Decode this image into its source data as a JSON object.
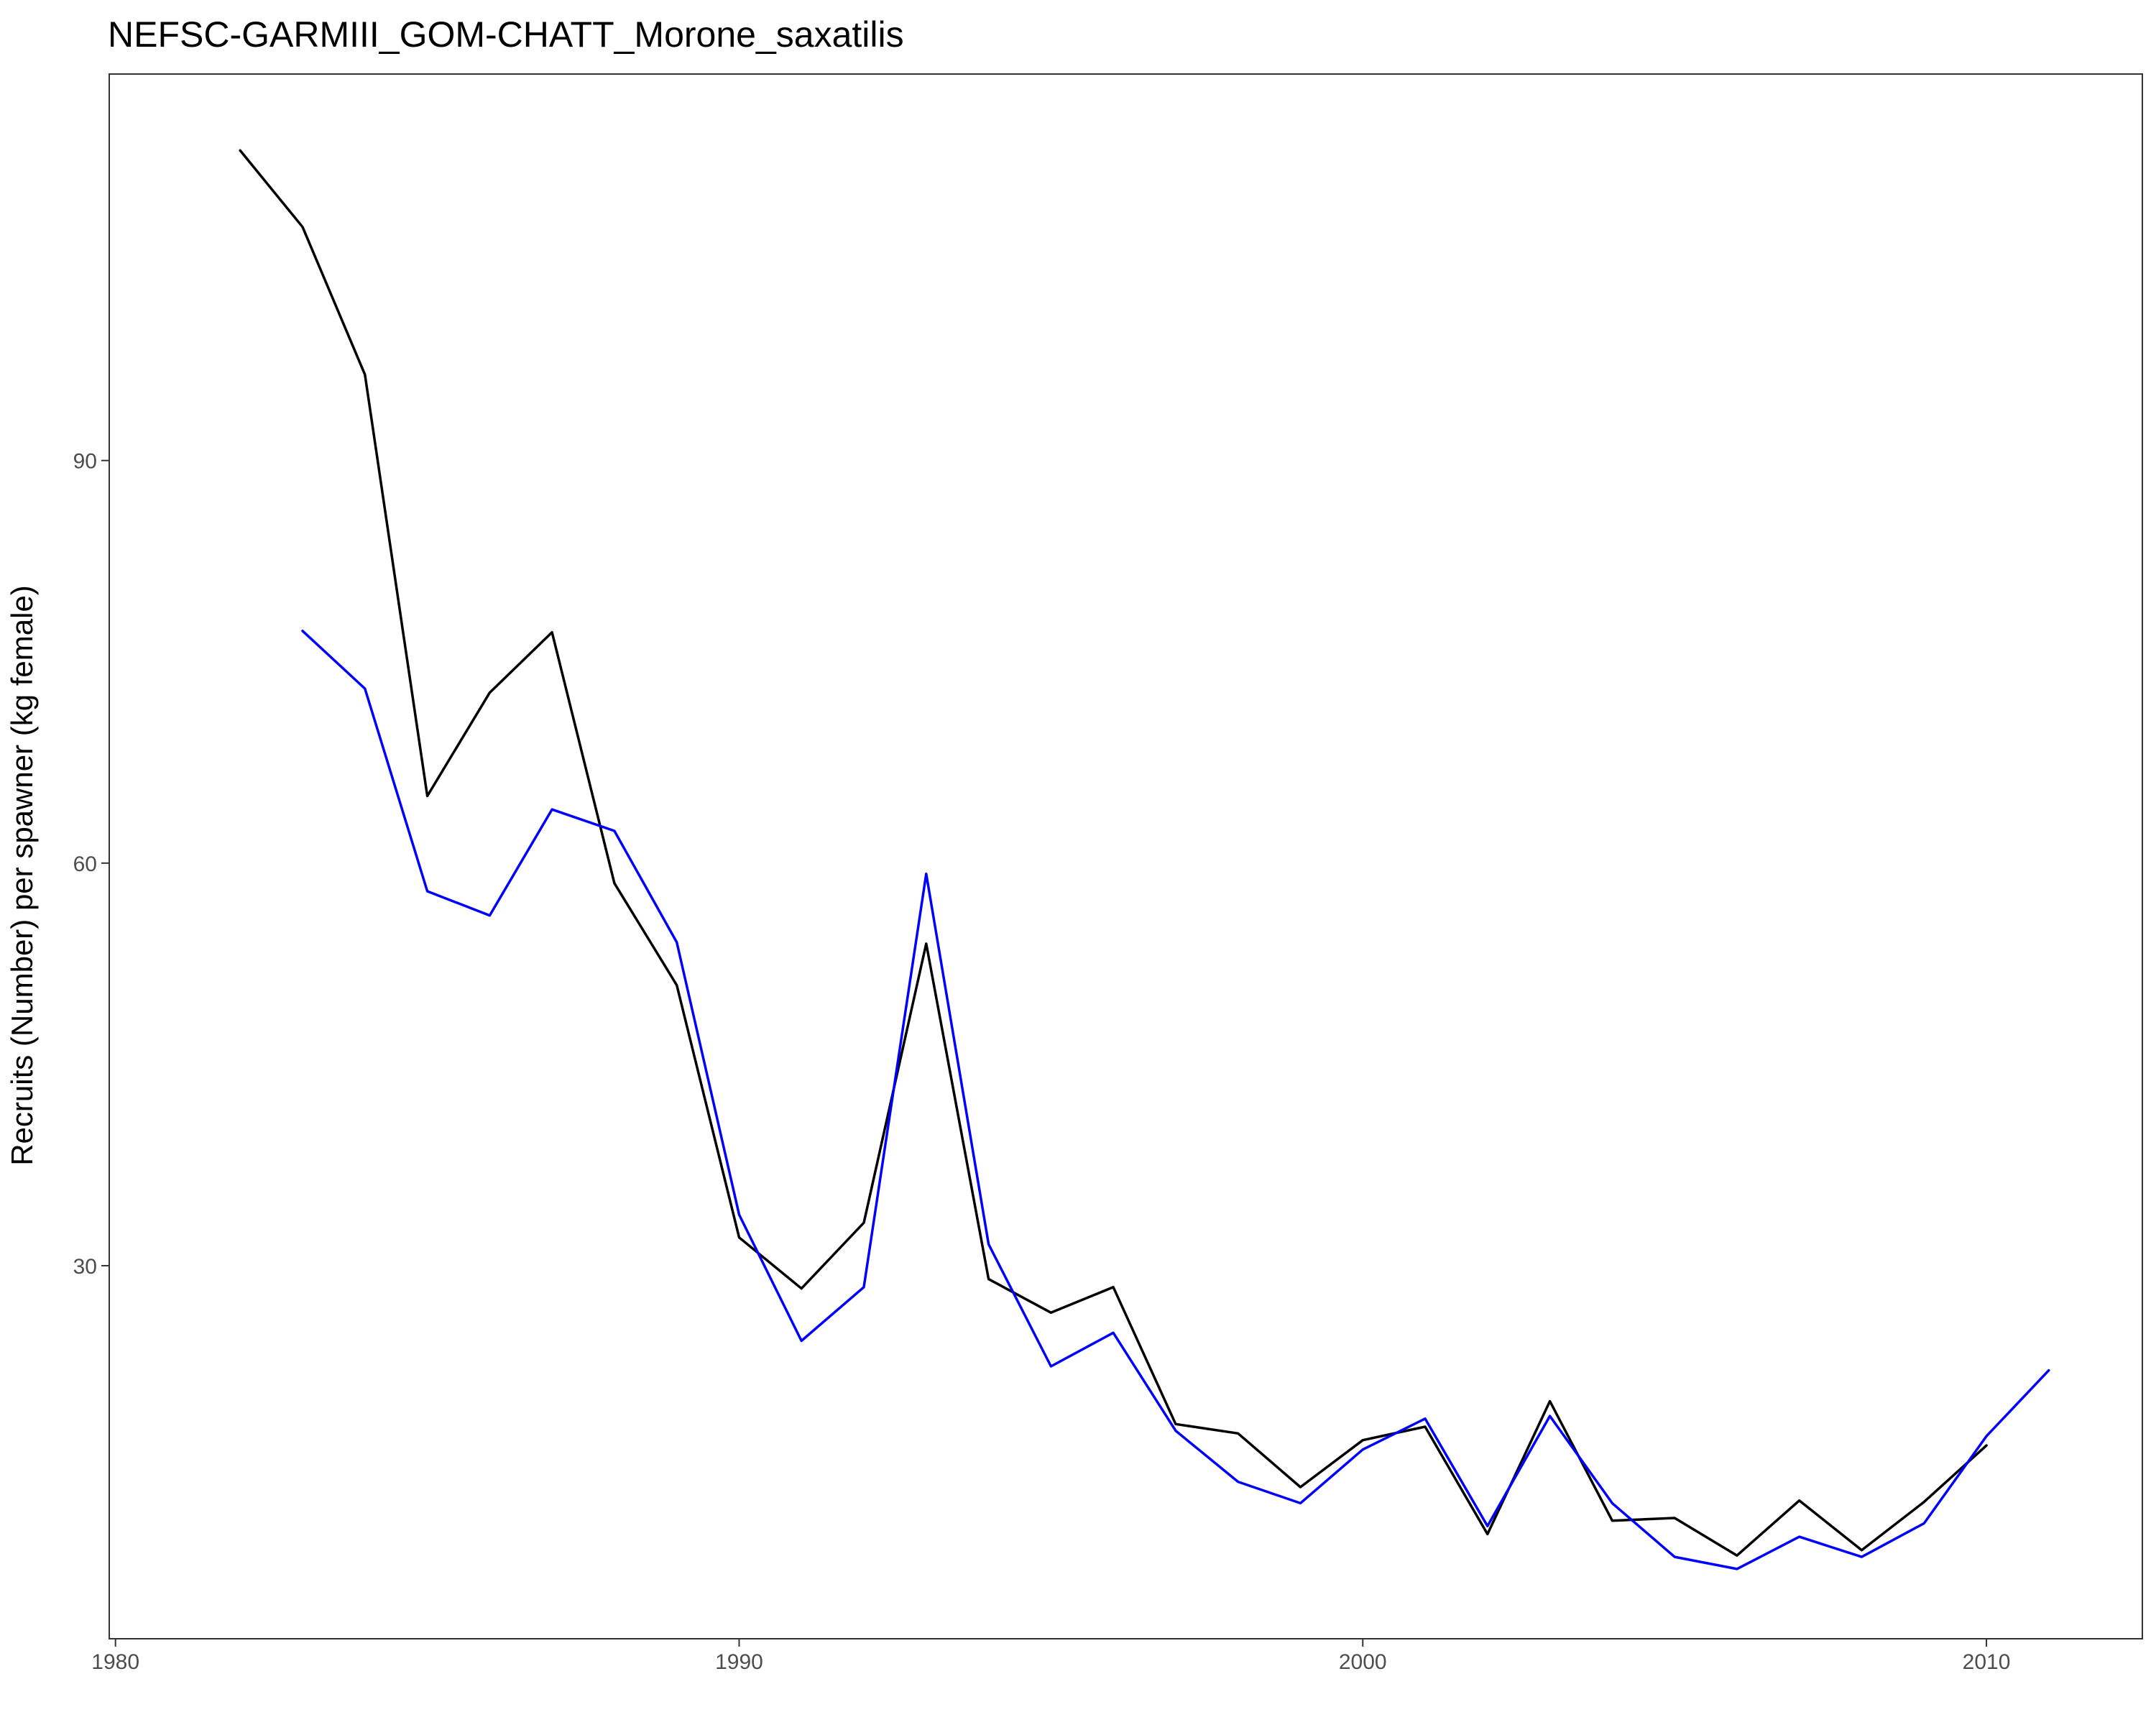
{
  "chart_data": {
    "type": "line",
    "title": "NEFSC-GARMIII_GOM-CHATT_Morone_saxatilis",
    "xlabel": "",
    "ylabel": "Recruits (Number) per spawner (kg female)",
    "xlim": [
      1979.9,
      2012.5
    ],
    "ylim": [
      2.2,
      118.8
    ],
    "x_ticks": [
      1980,
      1990,
      2000,
      2010
    ],
    "y_ticks": [
      30,
      60,
      90
    ],
    "grid": false,
    "legend": "none",
    "series": [
      {
        "color": "#000000",
        "x": [
          1982,
          1983,
          1984,
          1985,
          1986,
          1987,
          1988,
          1989,
          1990,
          1991,
          1992,
          1993,
          1994,
          1995,
          1996,
          1997,
          1998,
          1999,
          2000,
          2001,
          2002,
          2003,
          2004,
          2005,
          2006,
          2007,
          2008,
          2009,
          2010
        ],
        "y": [
          113.1,
          107.4,
          96.4,
          65.0,
          72.7,
          77.2,
          58.5,
          50.9,
          32.1,
          28.3,
          33.2,
          54.0,
          29.0,
          26.5,
          28.4,
          18.2,
          17.5,
          13.5,
          17.0,
          18.0,
          10.0,
          19.9,
          11.0,
          11.2,
          8.4,
          12.5,
          8.8,
          12.4,
          16.6
        ]
      },
      {
        "color": "#0000ff",
        "x": [
          1983,
          1984,
          1985,
          1986,
          1987,
          1988,
          1989,
          1990,
          1991,
          1992,
          1993,
          1994,
          1995,
          1996,
          1997,
          1998,
          1999,
          2000,
          2001,
          2002,
          2003,
          2004,
          2005,
          2006,
          2007,
          2008,
          2009,
          2010,
          2011
        ],
        "y": [
          77.3,
          73.0,
          57.9,
          56.1,
          64.0,
          62.4,
          54.1,
          33.8,
          24.4,
          28.4,
          59.2,
          31.6,
          22.5,
          25.0,
          17.7,
          13.9,
          12.3,
          16.3,
          18.6,
          10.6,
          18.8,
          12.3,
          8.3,
          7.4,
          9.8,
          8.3,
          10.8,
          17.3,
          22.2
        ]
      }
    ]
  }
}
